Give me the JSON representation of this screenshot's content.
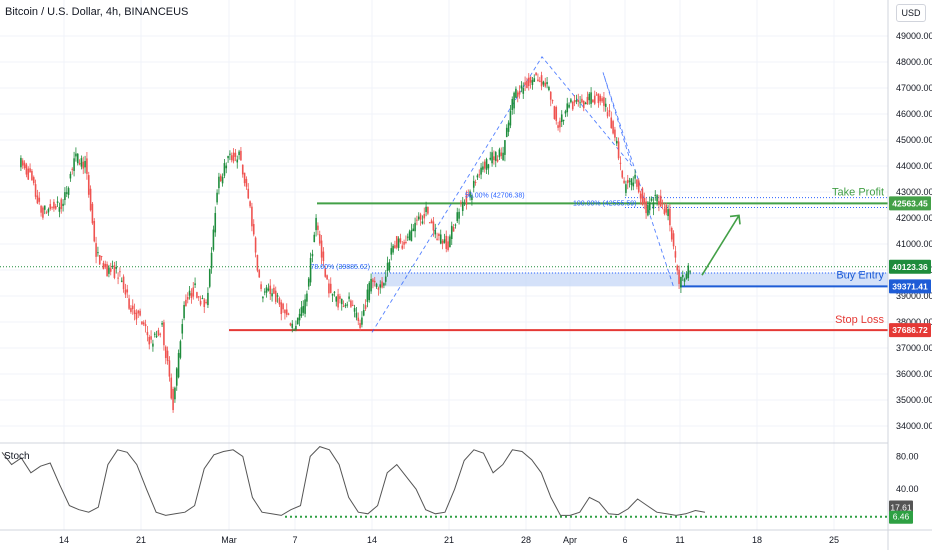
{
  "header": {
    "symbol_title": "Bitcoin / U.S. Dollar, 4h, BINANCEUS",
    "currency_button": "USD"
  },
  "indicator": {
    "name": "Stoch",
    "scale_labels": [
      "80.00",
      "40.00"
    ],
    "current_labels": [
      "17.61",
      "6.46"
    ]
  },
  "annotations": {
    "take_profit": "Take Profit",
    "buy_entry": "Buy Entry",
    "stop_loss": "Stop Loss",
    "fib_786": "78.60% (39885.62)",
    "fib_50_left": "50.00% (42706.38)",
    "fib_right": "100.00% (42555.59)"
  },
  "price_tags": {
    "take_profit": "42563.45",
    "current": "40123.36",
    "buy_entry": "39371.41",
    "stop_loss": "37686.72"
  },
  "colors": {
    "up": "#26a69a",
    "down": "#ef5350",
    "up_fill": "#1e8c3c",
    "take_profit": "#43a047",
    "buy_entry": "#1e5cd6",
    "stop_loss": "#e53935",
    "fib_line": "#2962ff",
    "stoch_line": "#555555",
    "stoch_dots": "#2ea043",
    "zone_fill": "#c9daf8"
  },
  "chart_data": {
    "type": "candlestick",
    "title": "Bitcoin / U.S. Dollar, 4h, BINANCEUS",
    "y_axis_labels": [
      "49000.00",
      "48000.00",
      "47000.00",
      "46000.00",
      "45000.00",
      "44000.00",
      "43000.00",
      "42000.00",
      "41000.00",
      "40000.00",
      "39000.00",
      "38000.00",
      "37000.00",
      "36000.00",
      "35000.00",
      "34000.00"
    ],
    "ylim": [
      33800,
      49800
    ],
    "x_tick_labels": [
      "14",
      "21",
      "Mar",
      "7",
      "14",
      "21",
      "28",
      "Apr",
      "6",
      "11",
      "18",
      "25"
    ],
    "approx_price_path": [
      [
        "Feb 10",
        44200
      ],
      [
        "Feb 11",
        43600
      ],
      [
        "Feb 12",
        42200
      ],
      [
        "Feb 13",
        42400
      ],
      [
        "Feb 14",
        42500
      ],
      [
        "Feb 15",
        44300
      ],
      [
        "Feb 16",
        44100
      ],
      [
        "Feb 17",
        40600
      ],
      [
        "Feb 18",
        40000
      ],
      [
        "Feb 19",
        39900
      ],
      [
        "Feb 20",
        38700
      ],
      [
        "Feb 21",
        38100
      ],
      [
        "Feb 22",
        37200
      ],
      [
        "Feb 23",
        37800
      ],
      [
        "Feb 24",
        34800
      ],
      [
        "Feb 25",
        38700
      ],
      [
        "Feb 26",
        39300
      ],
      [
        "Feb 27",
        38500
      ],
      [
        "Feb 28",
        43200
      ],
      [
        "Mar 1",
        44300
      ],
      [
        "Mar 2",
        44400
      ],
      [
        "Mar 3",
        42400
      ],
      [
        "Mar 4",
        39100
      ],
      [
        "Mar 5",
        39200
      ],
      [
        "Mar 6",
        38400
      ],
      [
        "Mar 7",
        37800
      ],
      [
        "Mar 8",
        38700
      ],
      [
        "Mar 9",
        41900
      ],
      [
        "Mar 10",
        39400
      ],
      [
        "Mar 11",
        38800
      ],
      [
        "Mar 12",
        38800
      ],
      [
        "Mar 13",
        37800
      ],
      [
        "Mar 14",
        39700
      ],
      [
        "Mar 15",
        39300
      ],
      [
        "Mar 16",
        41100
      ],
      [
        "Mar 17",
        40900
      ],
      [
        "Mar 18",
        41800
      ],
      [
        "Mar 19",
        42200
      ],
      [
        "Mar 20",
        41300
      ],
      [
        "Mar 21",
        41000
      ],
      [
        "Mar 22",
        42400
      ],
      [
        "Mar 23",
        42900
      ],
      [
        "Mar 24",
        44000
      ],
      [
        "Mar 25",
        44300
      ],
      [
        "Mar 26",
        44500
      ],
      [
        "Mar 27",
        46800
      ],
      [
        "Mar 28",
        47100
      ],
      [
        "Mar 29",
        47400
      ],
      [
        "Mar 30",
        47100
      ],
      [
        "Mar 31",
        45500
      ],
      [
        "Apr 1",
        46300
      ],
      [
        "Apr 2",
        46400
      ],
      [
        "Apr 3",
        46600
      ],
      [
        "Apr 4",
        46600
      ],
      [
        "Apr 5",
        45500
      ],
      [
        "Apr 6",
        43200
      ],
      [
        "Apr 7",
        43500
      ],
      [
        "Apr 8",
        42300
      ],
      [
        "Apr 9",
        42800
      ],
      [
        "Apr 10",
        42200
      ],
      [
        "Apr 11",
        39500
      ],
      [
        "Apr 12",
        40100
      ]
    ],
    "levels": [
      {
        "name": "Take Profit",
        "value": 42563.45
      },
      {
        "name": "Buy Entry",
        "value": 39371.41
      },
      {
        "name": "Stop Loss",
        "value": 37686.72
      }
    ],
    "stochastic": {
      "ylim": [
        0,
        100
      ],
      "last_k": 17.61,
      "last_d": 6.46
    }
  }
}
